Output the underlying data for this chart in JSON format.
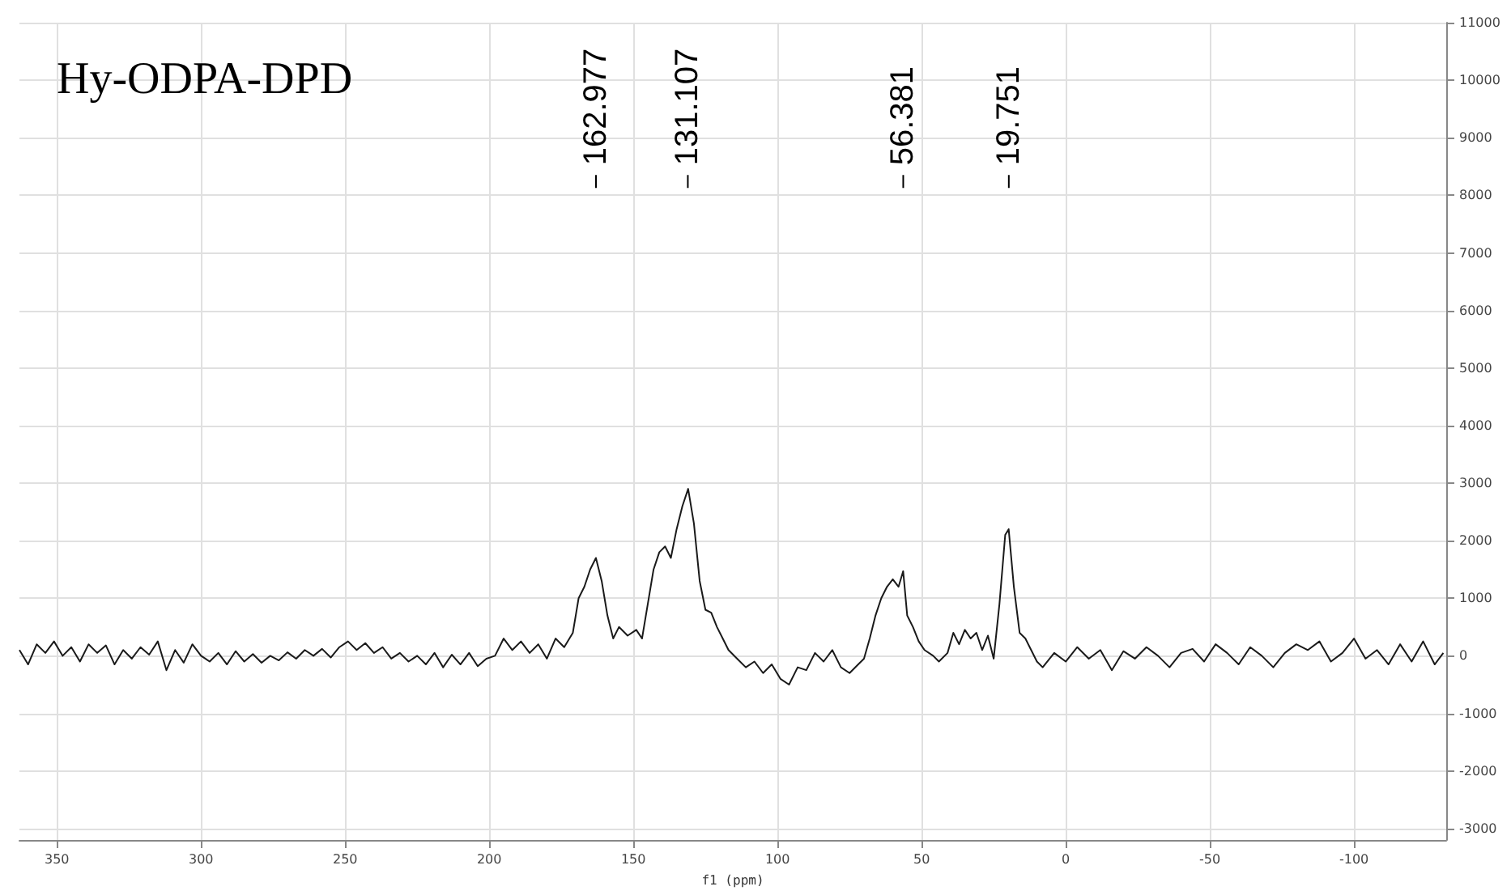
{
  "chart_data": {
    "type": "line",
    "title": "Hy-ODPA-DPD",
    "xlabel": "f1 (ppm)",
    "x": [
      363,
      360,
      357,
      354,
      351,
      348,
      345,
      342,
      339,
      336,
      333,
      330,
      327,
      324,
      321,
      318,
      315,
      312,
      309,
      306,
      303,
      300,
      297,
      294,
      291,
      288,
      285,
      282,
      279,
      276,
      273,
      270,
      267,
      264,
      261,
      258,
      255,
      252,
      249,
      246,
      243,
      240,
      237,
      234,
      231,
      228,
      225,
      222,
      219,
      216,
      213,
      210,
      207,
      204,
      201,
      198,
      195,
      192,
      189,
      186,
      183,
      180,
      177,
      174,
      171,
      169,
      167,
      165,
      163,
      161,
      159,
      157,
      155,
      152,
      149,
      147,
      145,
      143,
      141,
      139,
      137,
      135,
      133,
      131,
      129,
      127,
      125,
      123,
      121,
      119,
      117,
      114,
      111,
      108,
      105,
      102,
      99,
      96,
      93,
      90,
      87,
      84,
      81,
      78,
      75,
      72,
      70,
      68,
      66,
      64,
      62,
      60,
      58,
      56.4,
      55,
      53,
      51,
      49,
      46,
      44,
      41,
      39,
      37,
      35,
      33,
      31,
      29,
      27,
      25,
      23,
      21,
      19.8,
      18,
      16,
      14,
      12,
      10,
      8,
      4,
      0,
      -4,
      -8,
      -12,
      -16,
      -20,
      -24,
      -28,
      -32,
      -36,
      -40,
      -44,
      -48,
      -52,
      -56,
      -60,
      -64,
      -68,
      -72,
      -76,
      -80,
      -84,
      -88,
      -92,
      -96,
      -100,
      -104,
      -108,
      -112,
      -116,
      -120,
      -124,
      -128,
      -131
    ],
    "series": [
      {
        "color": "#1a1a1a",
        "values": [
          100,
          -150,
          200,
          50,
          250,
          0,
          150,
          -100,
          200,
          50,
          180,
          -150,
          100,
          -50,
          150,
          20,
          250,
          -250,
          100,
          -120,
          200,
          0,
          -100,
          50,
          -150,
          80,
          -100,
          30,
          -120,
          0,
          -80,
          60,
          -50,
          100,
          0,
          120,
          -30,
          150,
          250,
          100,
          220,
          50,
          150,
          -50,
          50,
          -100,
          0,
          -150,
          50,
          -200,
          20,
          -150,
          50,
          -180,
          -50,
          0,
          300,
          100,
          250,
          50,
          200,
          -50,
          300,
          150,
          400,
          1000,
          1200,
          1500,
          1700,
          1300,
          700,
          300,
          500,
          350,
          450,
          300,
          900,
          1500,
          1800,
          1900,
          1700,
          2200,
          2600,
          2900,
          2300,
          1300,
          800,
          750,
          500,
          300,
          100,
          -50,
          -200,
          -100,
          -300,
          -150,
          -400,
          -500,
          -200,
          -250,
          50,
          -100,
          100,
          -200,
          -300,
          -150,
          -50,
          300,
          700,
          1000,
          1200,
          1330,
          1200,
          1470,
          700,
          500,
          250,
          100,
          0,
          -100,
          50,
          400,
          200,
          450,
          300,
          400,
          100,
          350,
          -50,
          900,
          2100,
          2200,
          1200,
          400,
          300,
          100,
          -100,
          -200,
          50,
          -100,
          150,
          -50,
          100,
          -250,
          80,
          -50,
          150,
          0,
          -200,
          50,
          120,
          -100,
          200,
          50,
          -150,
          150,
          0,
          -200,
          50,
          200,
          100,
          250,
          -100,
          50,
          300,
          -50,
          100,
          -150,
          200,
          -100,
          250,
          -150,
          50
        ]
      }
    ],
    "xlim": [
      363,
      -132
    ],
    "xticks": [
      350,
      300,
      250,
      200,
      150,
      100,
      50,
      0,
      -50,
      -100
    ],
    "ylim": [
      -3200,
      11000
    ],
    "yticks": [
      -3000,
      -2000,
      -1000,
      0,
      1000,
      2000,
      3000,
      4000,
      5000,
      6000,
      7000,
      8000,
      9000,
      10000,
      11000
    ],
    "grid": true,
    "marker": "none",
    "line_style": "solid",
    "annotations": [
      {
        "text": "162.977",
        "x": 162.977
      },
      {
        "text": "131.107",
        "x": 131.107
      },
      {
        "text": "56.381",
        "x": 56.381
      },
      {
        "text": "19.751",
        "x": 19.751
      }
    ]
  }
}
